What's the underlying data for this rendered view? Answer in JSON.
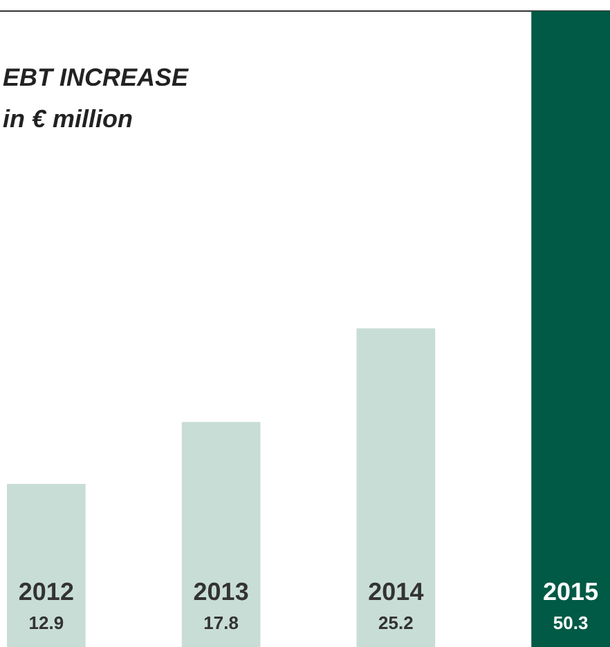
{
  "chart_data": {
    "type": "bar",
    "title": "EBT INCREASE",
    "subtitle": "in € million",
    "categories": [
      "2012",
      "2013",
      "2014",
      "2015"
    ],
    "values": [
      12.9,
      17.8,
      25.2,
      50.3
    ],
    "colors": [
      "#c8ddd6",
      "#c8ddd6",
      "#c8ddd6",
      "#005a45"
    ],
    "data_labels": true
  }
}
